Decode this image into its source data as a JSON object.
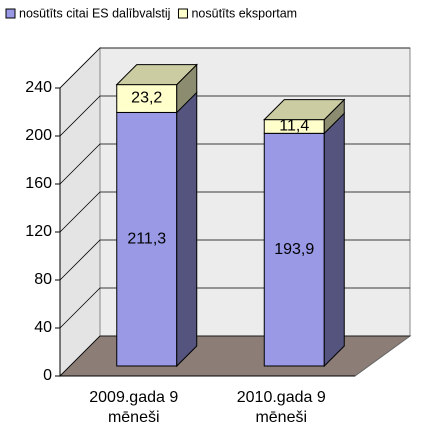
{
  "chart_data": {
    "type": "bar3d_stacked",
    "categories": [
      "2009.gada 9 mēneši",
      "2010.gada 9 mēneši"
    ],
    "series": [
      {
        "name": "nosūtīts citai ES dalībvalstij",
        "color": "#9999e6",
        "values": [
          211.3,
          193.9
        ],
        "value_labels": [
          "211,3",
          "193,9"
        ]
      },
      {
        "name": "nosūtīts eksportam",
        "color": "#ffffcc",
        "values": [
          23.2,
          11.4
        ],
        "value_labels": [
          "23,2",
          "11,4"
        ]
      }
    ],
    "ylim": [
      0,
      240
    ],
    "yticks": [
      0,
      40,
      80,
      120,
      160,
      200,
      240
    ],
    "grid": true,
    "legend": "top"
  }
}
